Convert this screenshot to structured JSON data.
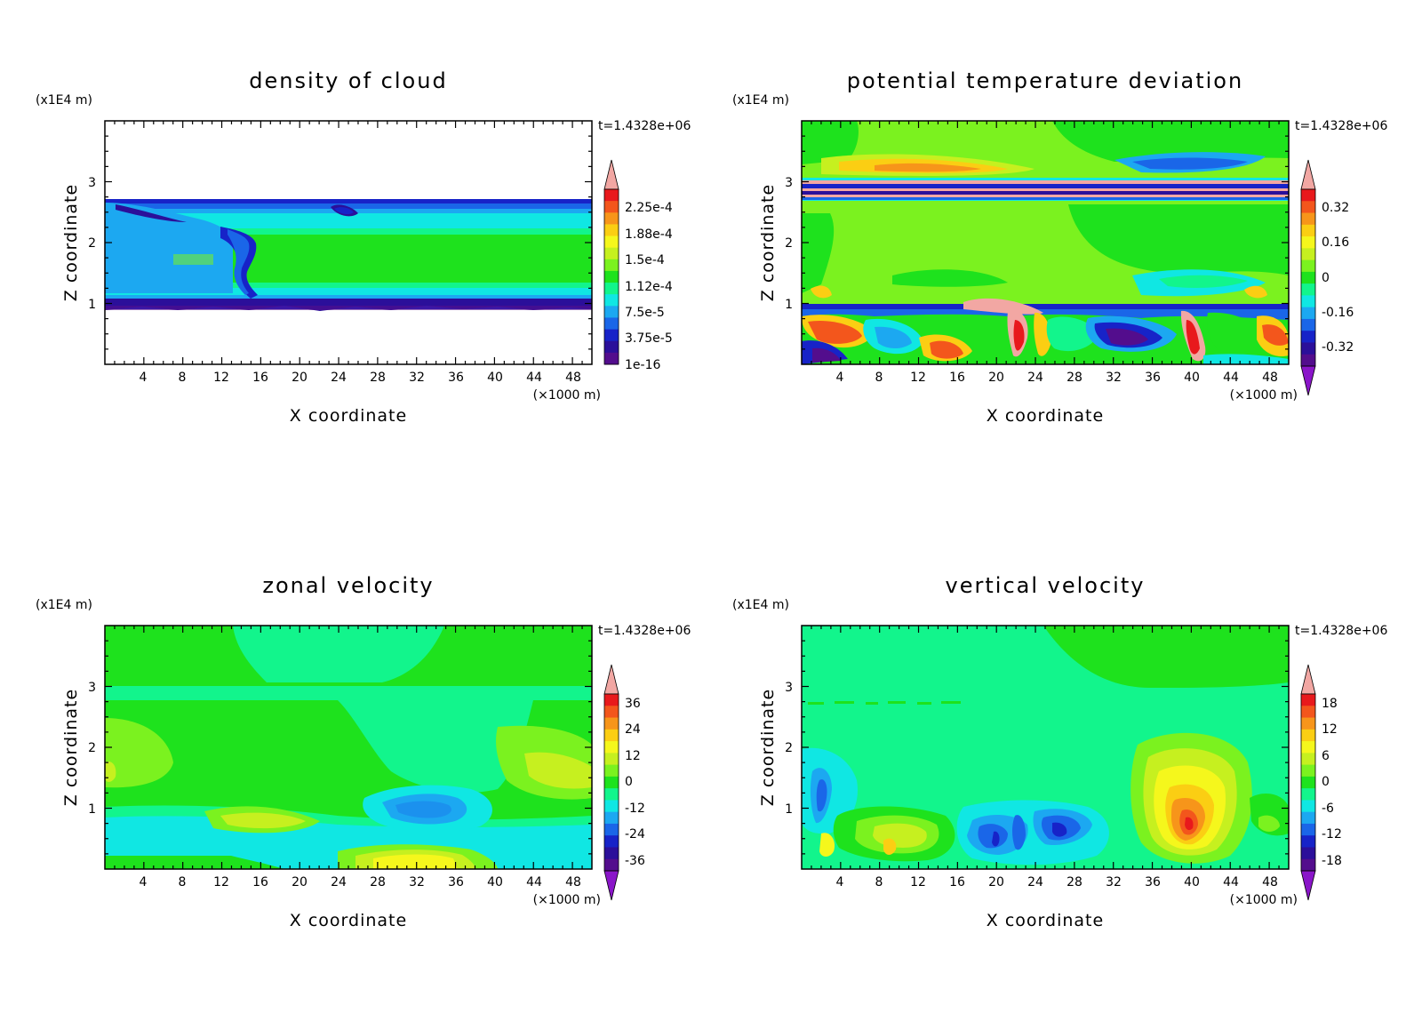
{
  "colors": {
    "levels_top_to_bottom": [
      "#f2a7a3",
      "#e8191c",
      "#f3561c",
      "#f7951a",
      "#fbce13",
      "#f5f71c",
      "#c6f01f",
      "#7bf21f",
      "#1ee21d",
      "#12f58c",
      "#10e7e3",
      "#1ca8f1",
      "#1a66e8",
      "#1723c8",
      "#2b0f9a",
      "#530d8d",
      "#8a15c9"
    ],
    "background_white": "#ffffff"
  },
  "chart_data": [
    {
      "id": "density",
      "type": "heatmap",
      "title": "density of cloud",
      "xlabel": "X coordinate",
      "ylabel": "Z coordinate",
      "x_unit": "(×1000 m)",
      "y_unit": "(x1E4 m)",
      "time_label": "t=1.4328e+06",
      "xlim": [
        0,
        50
      ],
      "ylim": [
        0,
        4
      ],
      "x_ticks": [
        "4",
        "8",
        "12",
        "16",
        "20",
        "24",
        "28",
        "32",
        "36",
        "40",
        "44",
        "48"
      ],
      "y_ticks": [
        "1",
        "2",
        "3"
      ],
      "colorbar_labels": [
        "2.25e-4",
        "1.88e-4",
        "1.5e-4",
        "1.12e-4",
        "7.5e-5",
        "3.75e-5",
        "1e-16"
      ],
      "colorbar_kind": "upper",
      "background": "#ffffff"
    },
    {
      "id": "theta",
      "type": "heatmap",
      "title": "potential temperature deviation",
      "xlabel": "X coordinate",
      "ylabel": "Z coordinate",
      "x_unit": "(×1000 m)",
      "y_unit": "(x1E4 m)",
      "time_label": "t=1.4328e+06",
      "xlim": [
        0,
        50
      ],
      "ylim": [
        0,
        4
      ],
      "x_ticks": [
        "4",
        "8",
        "12",
        "16",
        "20",
        "24",
        "28",
        "32",
        "36",
        "40",
        "44",
        "48"
      ],
      "y_ticks": [
        "1",
        "2",
        "3"
      ],
      "colorbar_labels": [
        "0.32",
        "0.16",
        "0",
        "-0.16",
        "-0.32"
      ],
      "colorbar_kind": "full",
      "background": "#7bf21f"
    },
    {
      "id": "zonal",
      "type": "heatmap",
      "title": "zonal velocity",
      "xlabel": "X coordinate",
      "ylabel": "Z coordinate",
      "x_unit": "(×1000 m)",
      "y_unit": "(x1E4 m)",
      "time_label": "t=1.4328e+06",
      "xlim": [
        0,
        50
      ],
      "ylim": [
        0,
        4
      ],
      "x_ticks": [
        "4",
        "8",
        "12",
        "16",
        "20",
        "24",
        "28",
        "32",
        "36",
        "40",
        "44",
        "48"
      ],
      "y_ticks": [
        "1",
        "2",
        "3"
      ],
      "colorbar_labels": [
        "36",
        "24",
        "12",
        "0",
        "-12",
        "-24",
        "-36"
      ],
      "colorbar_kind": "full",
      "background": "#1ee21d"
    },
    {
      "id": "vertical",
      "type": "heatmap",
      "title": "vertical velocity",
      "xlabel": "X coordinate",
      "ylabel": "Z coordinate",
      "x_unit": "(×1000 m)",
      "y_unit": "(x1E4 m)",
      "time_label": "t=1.4328e+06",
      "xlim": [
        0,
        50
      ],
      "ylim": [
        0,
        4
      ],
      "x_ticks": [
        "4",
        "8",
        "12",
        "16",
        "20",
        "24",
        "28",
        "32",
        "36",
        "40",
        "44",
        "48"
      ],
      "y_ticks": [
        "1",
        "2",
        "3"
      ],
      "colorbar_labels": [
        "18",
        "12",
        "6",
        "0",
        "-6",
        "-12",
        "-18"
      ],
      "colorbar_kind": "full",
      "background": "#12f58c"
    }
  ]
}
